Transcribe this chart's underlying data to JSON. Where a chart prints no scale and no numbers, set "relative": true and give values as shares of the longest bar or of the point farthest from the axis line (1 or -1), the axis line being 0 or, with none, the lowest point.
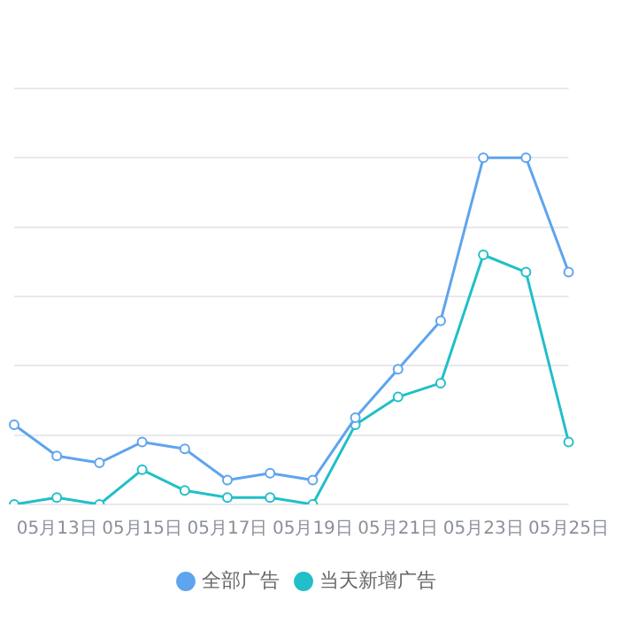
{
  "chart_data": {
    "type": "line",
    "relative": true,
    "categories": [
      null,
      "05月13日",
      null,
      "05月15日",
      null,
      "05月17日",
      null,
      "05月19日",
      null,
      "05月21日",
      null,
      "05月23日",
      null,
      "05月25日"
    ],
    "series": [
      {
        "name": "全部广告",
        "color": "#5fa4ee",
        "values": [
          0.23,
          0.14,
          0.12,
          0.18,
          0.16,
          0.07,
          0.09,
          0.07,
          0.25,
          0.39,
          0.53,
          1,
          1,
          0.67
        ]
      },
      {
        "name": "当天新增广告",
        "color": "#21bfc8",
        "values": [
          0,
          0.02,
          0,
          0.1,
          0.04,
          0.02,
          0.02,
          0,
          0.23,
          0.31,
          0.35,
          0.72,
          0.67,
          0.18
        ]
      }
    ],
    "grid": "y",
    "legend": "bottom",
    "marker": "circle",
    "line_style": "solid"
  }
}
